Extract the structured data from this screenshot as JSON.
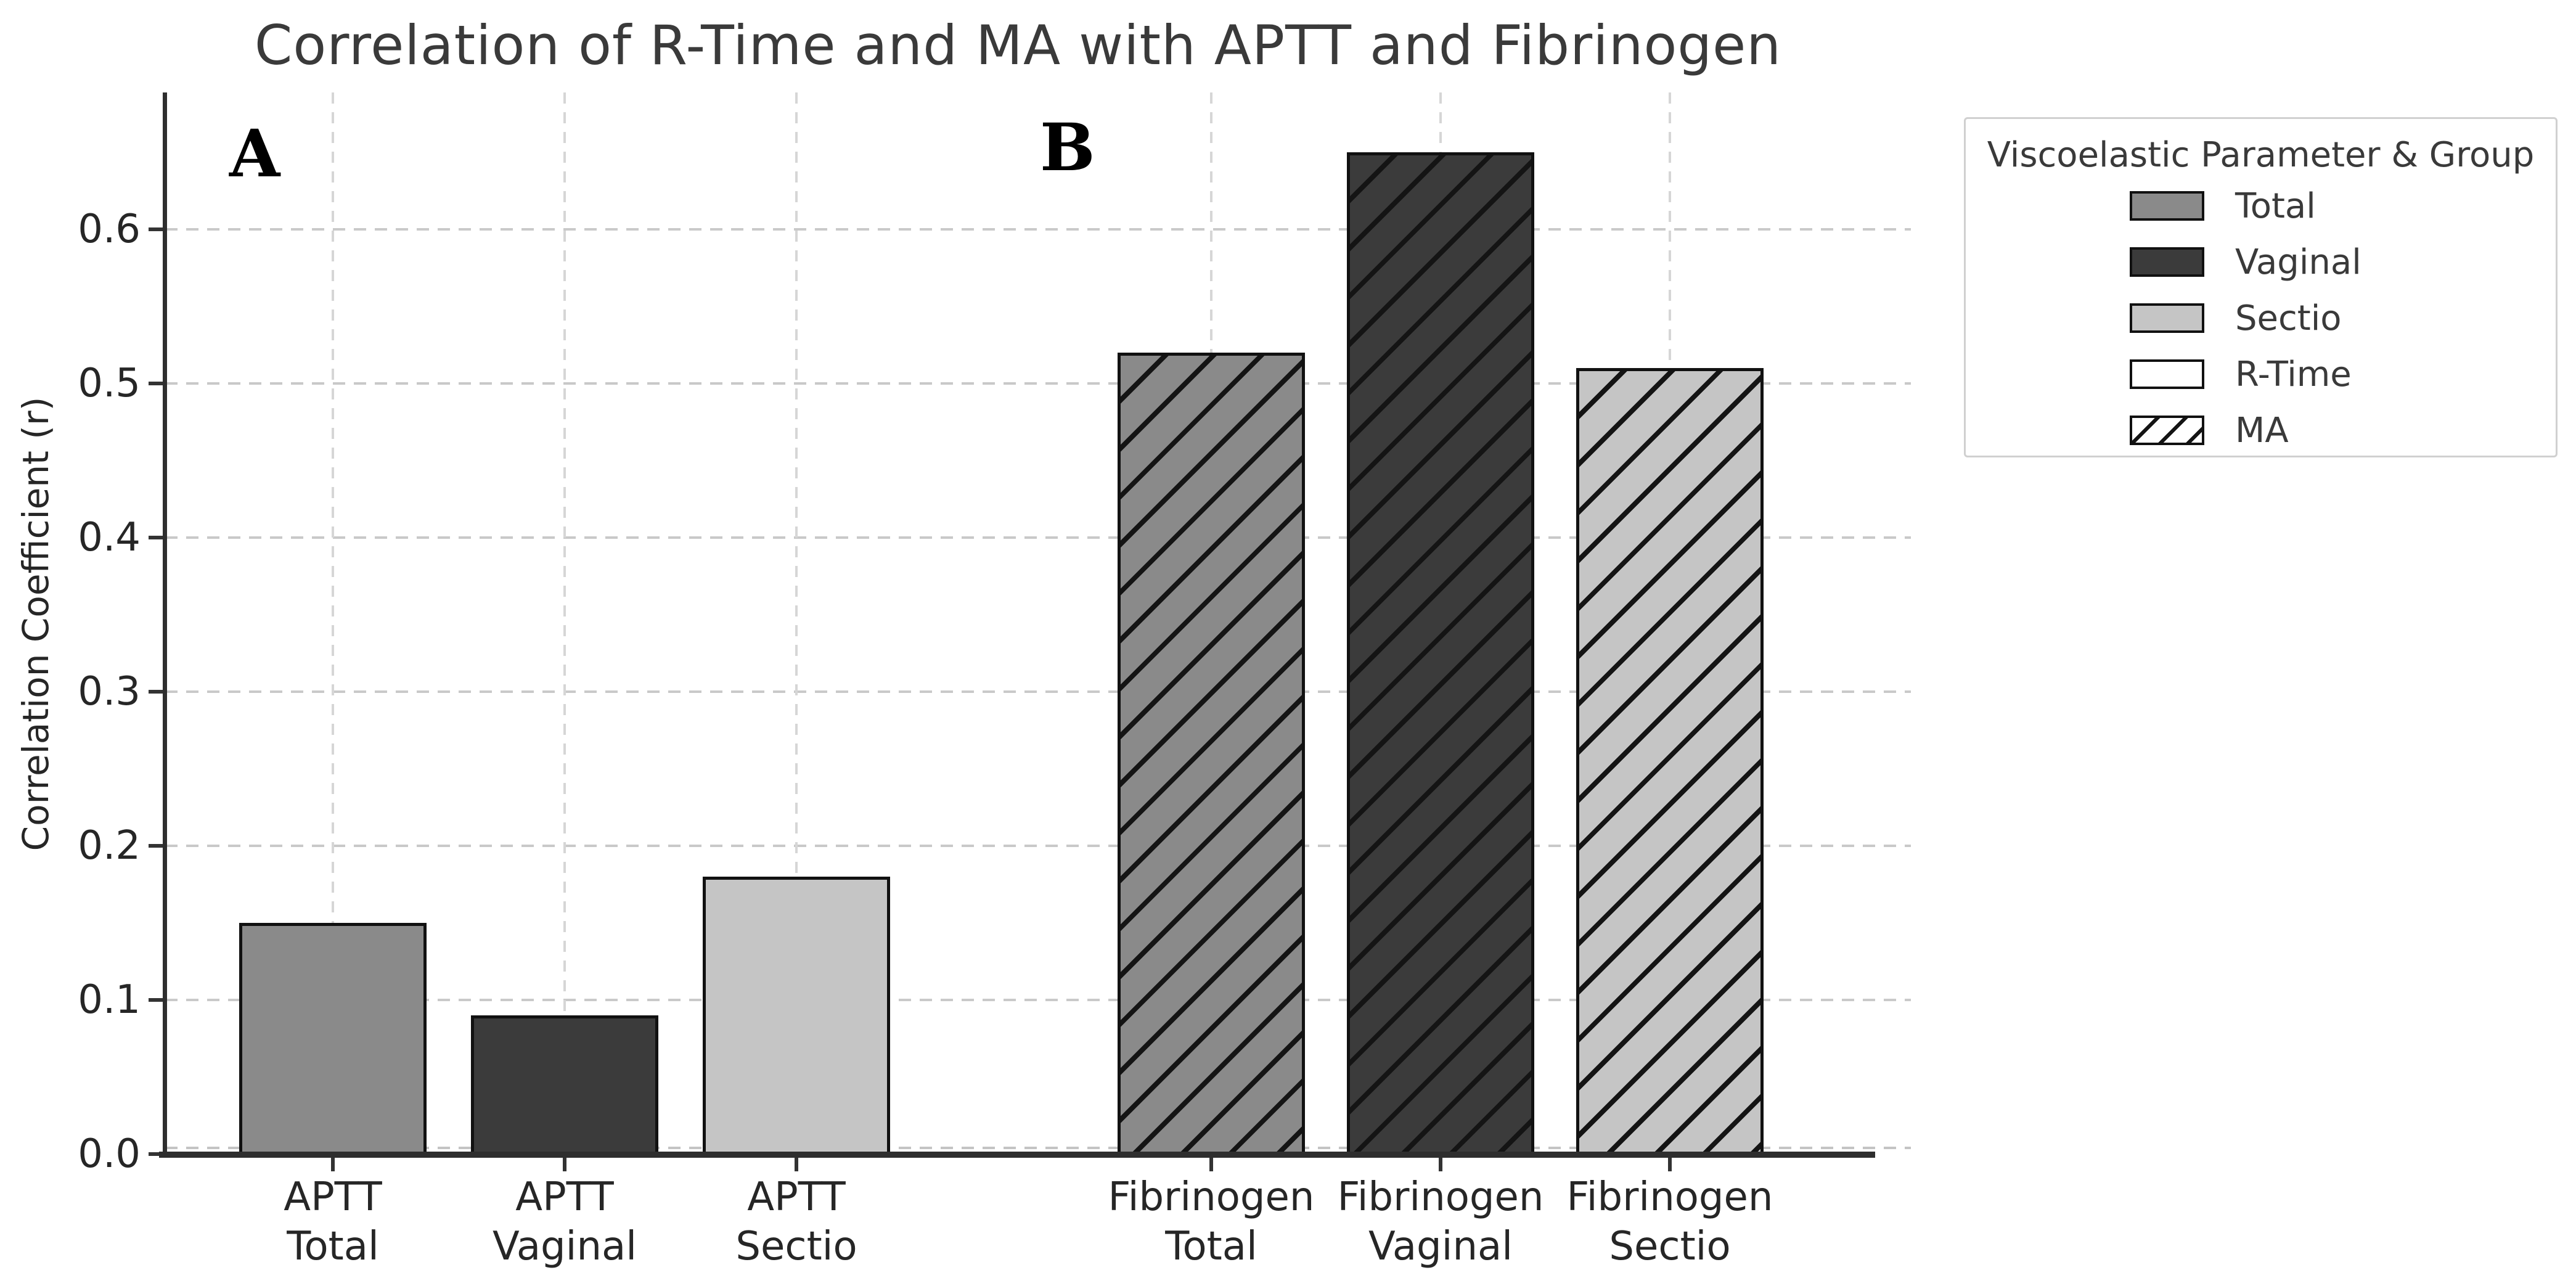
{
  "figure": {
    "title": "Correlation of R-Time and MA with APTT and Fibrinogen",
    "ylabel": "Correlation Coefficient (r)",
    "panel_a": "A",
    "panel_b": "B"
  },
  "legend": {
    "title": "Viscoelastic Parameter & Group",
    "items": [
      {
        "label": "Total",
        "swatch": "total",
        "hatch": false
      },
      {
        "label": "Vaginal",
        "swatch": "vaginal",
        "hatch": false
      },
      {
        "label": "Sectio",
        "swatch": "sectio",
        "hatch": false
      },
      {
        "label": "R-Time",
        "swatch": "rtime",
        "hatch": false
      },
      {
        "label": "MA",
        "swatch": "ma",
        "hatch": true
      }
    ]
  },
  "colors": {
    "total": "#8a8a8a",
    "vaginal": "#3b3b3b",
    "sectio": "#c5c5c5",
    "rtime": "#ffffff",
    "ma": "#ffffff",
    "edge": "#111111",
    "grid": "#c9c9c9",
    "spine": "#2e2e2e",
    "text": "#262626",
    "title_text": "#3a3a3a"
  },
  "chart_data": {
    "type": "bar",
    "title": "Correlation of R-Time and MA with APTT and Fibrinogen",
    "xlabel": "",
    "ylabel": "Correlation Coefficient (r)",
    "ylim": [
      0,
      0.6888
    ],
    "yticks": [
      0.0,
      0.1,
      0.2,
      0.3,
      0.4,
      0.5,
      0.6
    ],
    "grid": true,
    "legend_title": "Viscoelastic Parameter & Group",
    "legend_position": "outside upper right",
    "panels": [
      {
        "label": "A",
        "parameter": "R-Time",
        "hatch": "none"
      },
      {
        "label": "B",
        "parameter": "MA",
        "hatch": "/"
      }
    ],
    "categories": [
      "APTT Total",
      "APTT Vaginal",
      "APTT Sectio",
      "Fibrinogen Total",
      "Fibrinogen Vaginal",
      "Fibrinogen Sectio"
    ],
    "bars": [
      {
        "category_line1": "APTT",
        "category_line2": "Total",
        "group": "Total",
        "parameter": "R-Time",
        "value": 0.15,
        "color_key": "total",
        "hatch": false
      },
      {
        "category_line1": "APTT",
        "category_line2": "Vaginal",
        "group": "Vaginal",
        "parameter": "R-Time",
        "value": 0.09,
        "color_key": "vaginal",
        "hatch": false
      },
      {
        "category_line1": "APTT",
        "category_line2": "Sectio",
        "group": "Sectio",
        "parameter": "R-Time",
        "value": 0.18,
        "color_key": "sectio",
        "hatch": false
      },
      {
        "category_line1": "Fibrinogen",
        "category_line2": "Total",
        "group": "Total",
        "parameter": "MA",
        "value": 0.52,
        "color_key": "total",
        "hatch": true
      },
      {
        "category_line1": "Fibrinogen",
        "category_line2": "Vaginal",
        "group": "Vaginal",
        "parameter": "MA",
        "value": 0.65,
        "color_key": "vaginal",
        "hatch": true
      },
      {
        "category_line1": "Fibrinogen",
        "category_line2": "Sectio",
        "group": "Sectio",
        "parameter": "MA",
        "value": 0.51,
        "color_key": "sectio",
        "hatch": true
      }
    ]
  }
}
